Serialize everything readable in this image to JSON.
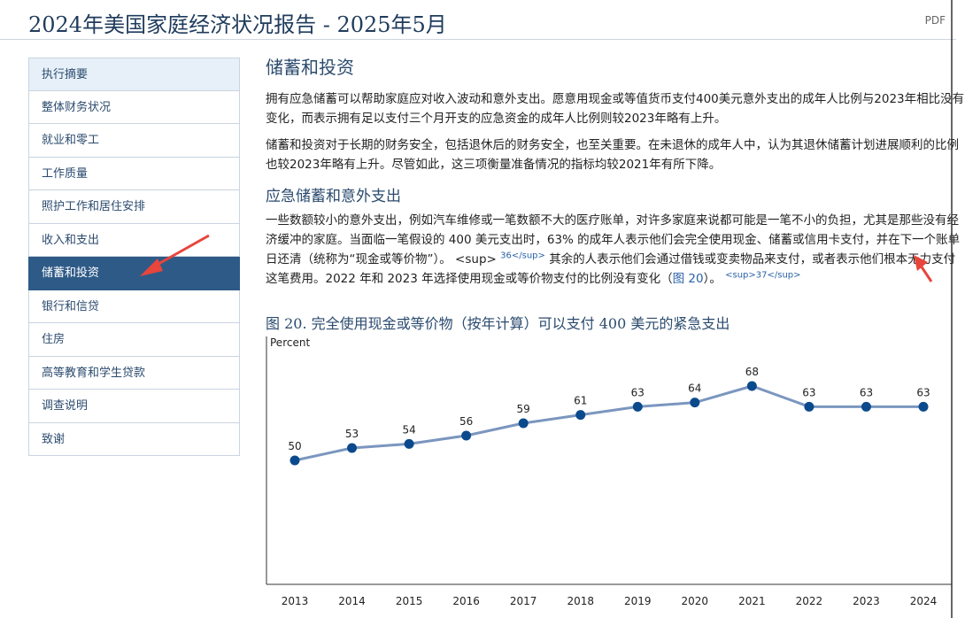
{
  "header": {
    "title": "2024年美国家庭经济状况报告 - 2025年5月",
    "pdf": "PDF"
  },
  "nav": [
    "执行摘要",
    "整体财务状况",
    "就业和零工",
    "工作质量",
    "照护工作和居住安排",
    "收入和支出",
    "储蓄和投资",
    "银行和信贷",
    "住房",
    "高等教育和学生贷款",
    "调查说明",
    "致谢"
  ],
  "content": {
    "title": "储蓄和投资",
    "para1": "拥有应急储蓄可以帮助家庭应对收入波动和意外支出。愿意用现金或等值货币支付400美元意外支出的成年人比例与2023年相比没有变化，而表示拥有足以支付三个月开支的应急资金的成年人比例则较2023年略有上升。",
    "para2": "储蓄和投资对于长期的财务安全，包括退休后的财务安全，也至关重要。在未退休的成年人中，认为其退休储蓄计划进展顺利的比例也较2023年略有上升。尽管如此，这三项衡量准备情况的指标均较2021年有所下降。",
    "subtitle": "应急储蓄和意外支出",
    "para3": [
      "一些数额较小的意外支出，例如汽车维修或一笔数额不大的医疗账单，对许多家庭来说都可能是一笔不小的负担，尤其是那些没有经济缓冲的家庭。当面临一笔假设的 400 美元支出时，63% 的成年人表示他们会完全使用现金、储蓄或信用卡支付，并在下一个账单日还清（统称为“现金或等价物”）。",
      "<sup>",
      "36</sup>",
      "其余的人表示他们会通过借钱或变卖物品来支付，或者表示他们根本无力支付这笔费用。2022 年和 2023 年选择使用现金或等价物支付的比例没有变化（",
      "图 20",
      "）。",
      "<sup>37</sup>"
    ]
  },
  "chart_data": {
    "type": "line",
    "title": "图 20. 完全使用现金或等价物（按年计算）可以支付 400 美元的紧急支出",
    "y_label": "Percent",
    "categories": [
      "2013",
      "2014",
      "2015",
      "2016",
      "2017",
      "2018",
      "2019",
      "2020",
      "2021",
      "2022",
      "2023",
      "2024"
    ],
    "series": [
      {
        "name": "Percent",
        "color": "#7b96bf",
        "marker_color": "#0a4a8c",
        "values": [
          50,
          53,
          54,
          56,
          59,
          61,
          63,
          64,
          68,
          63,
          63,
          63
        ]
      }
    ],
    "ylim": [
      20,
      80
    ]
  }
}
